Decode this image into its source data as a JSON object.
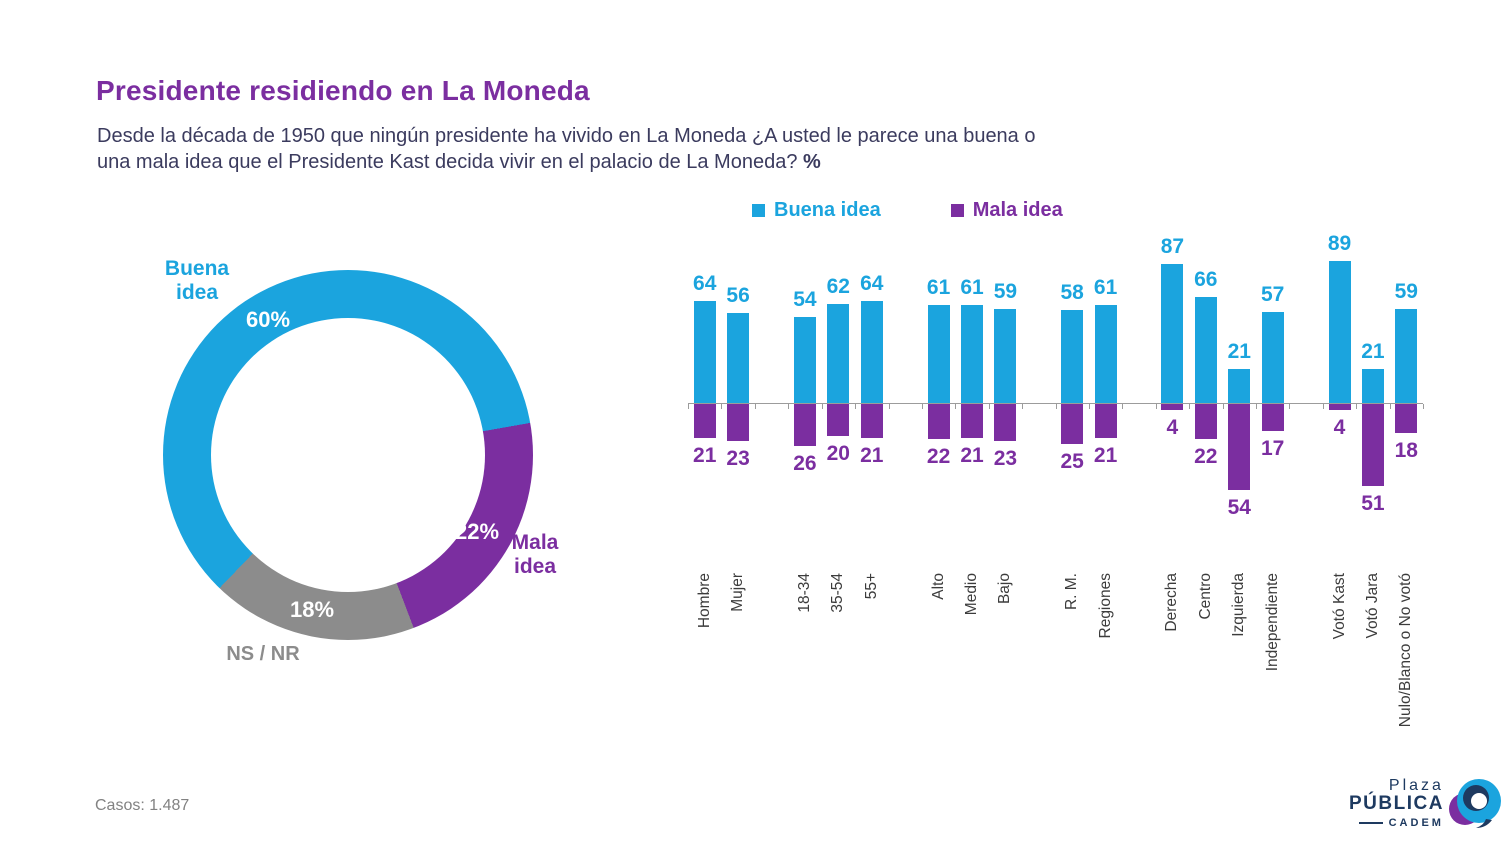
{
  "title": "Presidente residiendo en La Moneda",
  "subtitle": {
    "line1": "Desde la década de 1950 que ningún presidente ha vivido en La Moneda ¿A usted le parece una buena o",
    "line2": "una mala idea que el Presidente Kast decida vivir en el palacio de La Moneda? ",
    "bold_suffix": "%"
  },
  "footer": {
    "cases_label": "Casos:",
    "cases_value": "1.487"
  },
  "logo": {
    "line1": "Plaza",
    "line2": "PÚBLICA",
    "line3": "CADEM"
  },
  "chart_data": [
    {
      "type": "pie",
      "subtype": "donut",
      "labels": [
        "Buena idea",
        "Mala idea",
        "NS / NR"
      ],
      "values": [
        60,
        22,
        18
      ],
      "value_labels": [
        "60%",
        "22%",
        "18%"
      ],
      "colors": [
        "#1BA4DE",
        "#7B2EA0",
        "#8C8C8C"
      ],
      "start_angle_deg": 224,
      "legend_position": "none"
    },
    {
      "type": "bar",
      "subtype": "diverging-vertical",
      "categories": [
        "Hombre",
        "Mujer",
        "18-34",
        "35-54",
        "55+",
        "Alto",
        "Medio",
        "Bajo",
        "R. M.",
        "Regiones",
        "Derecha",
        "Centro",
        "Izquierda",
        "Independiente",
        "Votó Kast",
        "Votó Jara",
        "Nulo/Blanco o No votó"
      ],
      "group_breaks_after": [
        "Mujer",
        "55+",
        "Bajo",
        "Regiones",
        "Independiente"
      ],
      "series": [
        {
          "name": "Buena idea",
          "color": "#1BA4DE",
          "direction": "up",
          "values": [
            64,
            56,
            54,
            62,
            64,
            61,
            61,
            59,
            58,
            61,
            87,
            66,
            21,
            57,
            89,
            21,
            59
          ]
        },
        {
          "name": "Mala idea",
          "color": "#7B2EA0",
          "direction": "down",
          "values": [
            21,
            23,
            26,
            20,
            21,
            22,
            21,
            23,
            25,
            21,
            4,
            22,
            54,
            17,
            4,
            51,
            18
          ]
        }
      ],
      "ylim": [
        0,
        100
      ],
      "grid": false,
      "legend_position": "top",
      "axis_style": "zero-line-with-ticks"
    }
  ]
}
